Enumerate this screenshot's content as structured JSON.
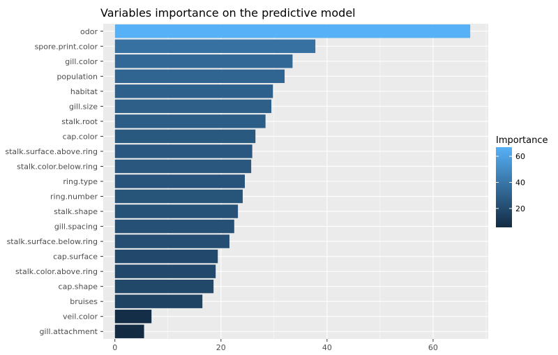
{
  "chart_data": {
    "type": "bar",
    "orientation": "horizontal",
    "title": "Variables importance on the predictive model",
    "xlabel": "",
    "ylabel": "",
    "categories": [
      "odor",
      "spore.print.color",
      "gill.color",
      "population",
      "habitat",
      "gill.size",
      "stalk.root",
      "cap.color",
      "stalk.surface.above.ring",
      "stalk.color.below.ring",
      "ring.type",
      "ring.number",
      "stalk.shape",
      "gill.spacing",
      "stalk.surface.below.ring",
      "cap.surface",
      "stalk.color.above.ring",
      "cap.shape",
      "bruises",
      "veil.color",
      "gill.attachment"
    ],
    "values": [
      67.0,
      37.8,
      33.5,
      32.0,
      29.8,
      29.5,
      28.4,
      26.5,
      25.9,
      25.7,
      24.5,
      24.1,
      23.2,
      22.5,
      21.6,
      19.4,
      19.0,
      18.6,
      16.5,
      6.9,
      5.5
    ],
    "xlim": [
      -2.2,
      70.4
    ],
    "xticks": [
      "0",
      "20",
      "40",
      "60"
    ],
    "grid": true,
    "legend": {
      "title": "Importance",
      "position": "right",
      "ticks": [
        "20",
        "40",
        "60"
      ],
      "range": [
        5.5,
        67.0
      ]
    },
    "colors": {
      "low": "#132B43",
      "high": "#56B1F7",
      "panel": "#EBEBEB",
      "grid": "#FFFFFF"
    }
  }
}
